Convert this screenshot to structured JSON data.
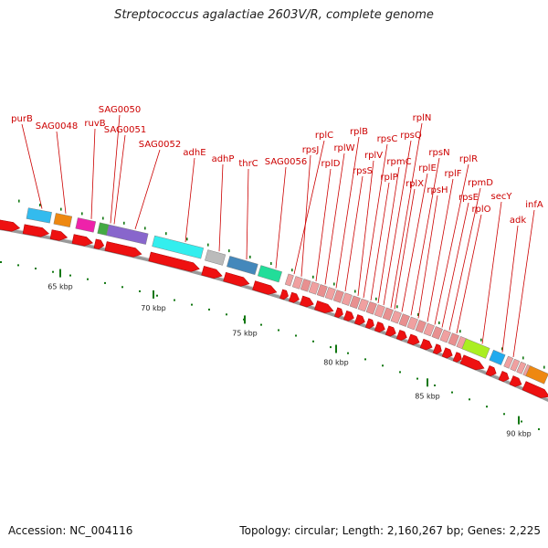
{
  "title": "Streptococcus agalactiae 2603V/R, complete genome",
  "accession": "Accession: NC_004116",
  "summary": "Topology: circular; Length: 2,160,267 bp; Genes: 2,225",
  "colors": {
    "gene_arrow": "#ee1111",
    "label": "#cc0000",
    "leader": "#cc0000",
    "backbone": "#888888",
    "tick": "#117711",
    "rrna_block": "#f0a0a0"
  },
  "kbp_marks": [
    {
      "label": "65 kbp"
    },
    {
      "label": "70 kbp"
    },
    {
      "label": "75 kbp"
    },
    {
      "label": "80 kbp"
    },
    {
      "label": "85 kbp"
    },
    {
      "label": "90 kbp"
    }
  ],
  "genes": [
    {
      "label": "purB"
    },
    {
      "label": "SAG0048"
    },
    {
      "label": "ruvB"
    },
    {
      "label": "SAG0050"
    },
    {
      "label": "SAG0051"
    },
    {
      "label": "SAG0052"
    },
    {
      "label": "adhE"
    },
    {
      "label": "adhP"
    },
    {
      "label": "thrC"
    },
    {
      "label": "SAG0056"
    },
    {
      "label": "rplC"
    },
    {
      "label": "rpsJ"
    },
    {
      "label": "rplD"
    },
    {
      "label": "rplW"
    },
    {
      "label": "rplB"
    },
    {
      "label": "rpsS"
    },
    {
      "label": "rplV"
    },
    {
      "label": "rpsC"
    },
    {
      "label": "rplP"
    },
    {
      "label": "rpmC"
    },
    {
      "label": "rpsQ"
    },
    {
      "label": "rplN"
    },
    {
      "label": "rplX"
    },
    {
      "label": "rplE"
    },
    {
      "label": "rpsN"
    },
    {
      "label": "rpsH"
    },
    {
      "label": "rplF"
    },
    {
      "label": "rplR"
    },
    {
      "label": "rpsE"
    },
    {
      "label": "rpmD"
    },
    {
      "label": "rplO"
    },
    {
      "label": "secY"
    },
    {
      "label": "adk"
    },
    {
      "label": "infA"
    }
  ]
}
